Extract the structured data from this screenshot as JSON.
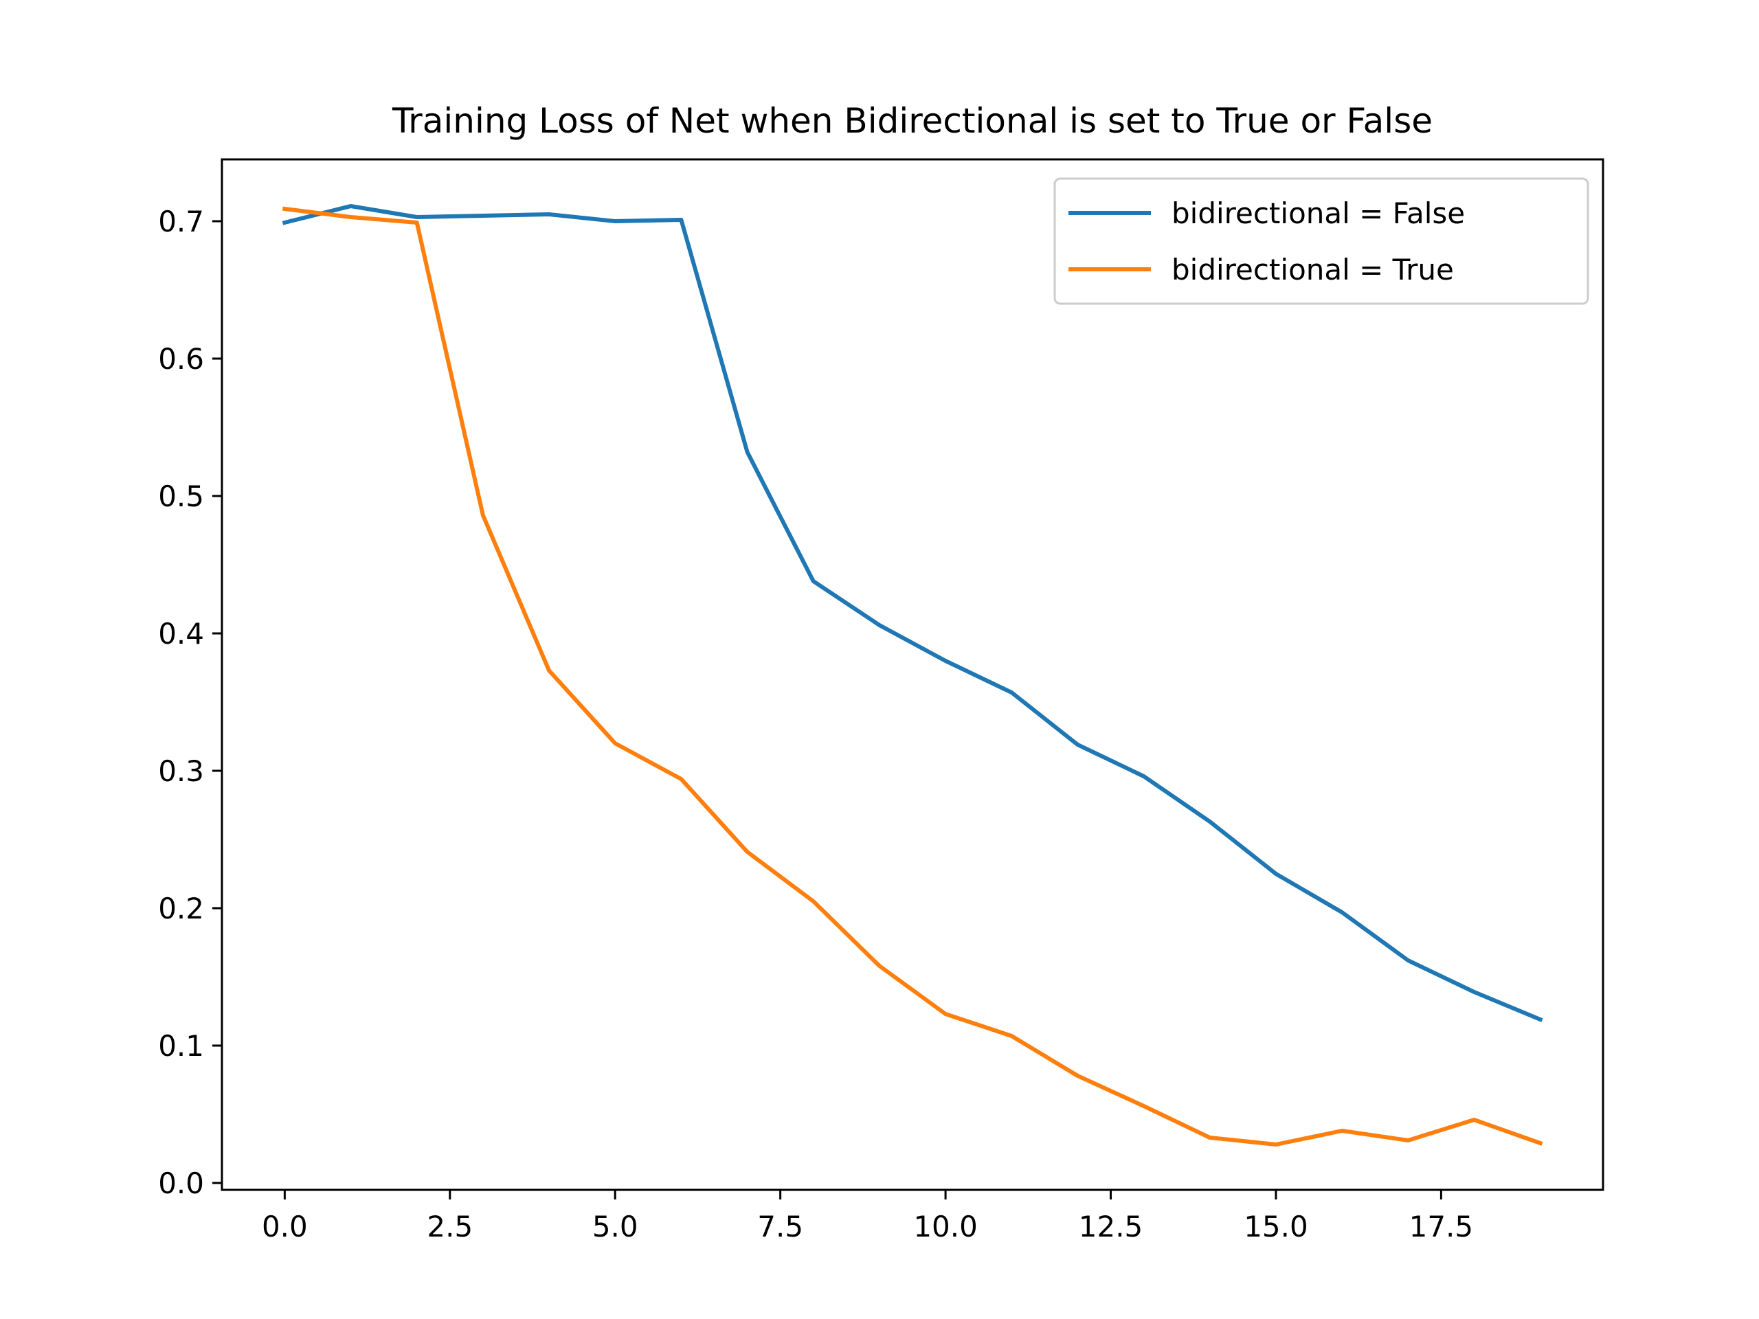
{
  "chart_data": {
    "type": "line",
    "title": "Training Loss of Net when Bidirectional is set to True or False",
    "xlabel": "",
    "ylabel": "",
    "xlim": [
      -0.95,
      19.95
    ],
    "ylim": [
      -0.005,
      0.745
    ],
    "xticks": [
      0.0,
      2.5,
      5.0,
      7.5,
      10.0,
      12.5,
      15.0,
      17.5
    ],
    "xtick_labels": [
      "0.0",
      "2.5",
      "5.0",
      "7.5",
      "10.0",
      "12.5",
      "15.0",
      "17.5"
    ],
    "yticks": [
      0.0,
      0.1,
      0.2,
      0.3,
      0.4,
      0.5,
      0.6,
      0.7
    ],
    "ytick_labels": [
      "0.0",
      "0.1",
      "0.2",
      "0.3",
      "0.4",
      "0.5",
      "0.6",
      "0.7"
    ],
    "grid": false,
    "legend_position": "top-right",
    "x": [
      0,
      1,
      2,
      3,
      4,
      5,
      6,
      7,
      8,
      9,
      10,
      11,
      12,
      13,
      14,
      15,
      16,
      17,
      18,
      19
    ],
    "series": [
      {
        "name": "bidirectional = False",
        "color": "#1f77b4",
        "values": [
          0.699,
          0.711,
          0.703,
          0.704,
          0.705,
          0.7,
          0.701,
          0.532,
          0.438,
          0.406,
          0.38,
          0.357,
          0.319,
          0.296,
          0.263,
          0.225,
          0.197,
          0.162,
          0.139,
          0.119
        ]
      },
      {
        "name": "bidirectional = True",
        "color": "#ff7f0e",
        "values": [
          0.709,
          0.703,
          0.699,
          0.486,
          0.373,
          0.32,
          0.294,
          0.241,
          0.205,
          0.158,
          0.123,
          0.107,
          0.078,
          0.056,
          0.033,
          0.028,
          0.038,
          0.031,
          0.046,
          0.029
        ]
      }
    ]
  }
}
